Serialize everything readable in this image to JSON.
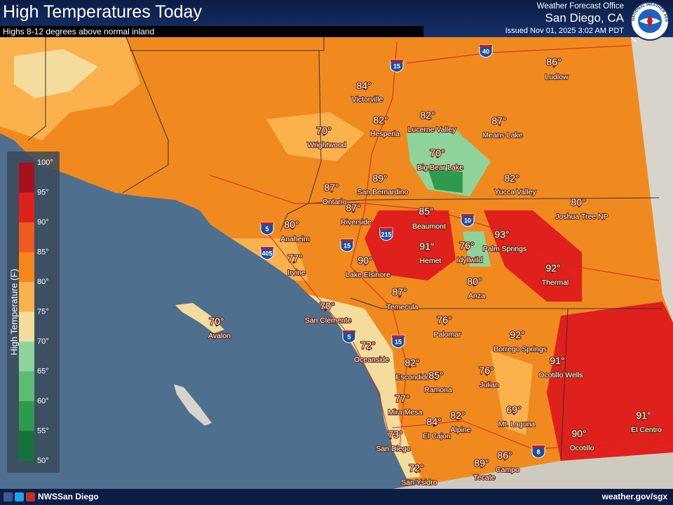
{
  "header": {
    "title": "High Temperatures Today",
    "subtitle": "Highs 8-12 degrees above normal inland",
    "office": "Weather Forecast Office",
    "location": "San Diego, CA",
    "issued": "Issued Nov 01, 2025 3:02 AM PDT",
    "seal": "NATIONAL WEATHER SERVICE"
  },
  "legend": {
    "title": "High Temperature (F)",
    "labels": [
      "100°",
      "95°",
      "90°",
      "85°",
      "80°",
      "75°",
      "70°",
      "65°",
      "60°",
      "55°",
      "50°"
    ],
    "colors": [
      "#a8101e",
      "#e0201c",
      "#ef5a1e",
      "#f7861a",
      "#fbb24c",
      "#f4dd9c",
      "#8ed49a",
      "#5cbc73",
      "#2e9a4e",
      "#147338"
    ]
  },
  "cities": [
    {
      "name": "Victorville",
      "temp": "84°"
    },
    {
      "name": "Hesperia",
      "temp": "82°"
    },
    {
      "name": "Lucerne Valley",
      "temp": "82°"
    },
    {
      "name": "Means Lake",
      "temp": "87°"
    },
    {
      "name": "Ludlow",
      "temp": "86°"
    },
    {
      "name": "Wrightwood",
      "temp": "70°"
    },
    {
      "name": "Big Bear Lake",
      "temp": "70°"
    },
    {
      "name": "San Bernardino",
      "temp": "89°"
    },
    {
      "name": "Yucca Valley",
      "temp": "82°"
    },
    {
      "name": "Joshua Tree NP",
      "temp": "80°"
    },
    {
      "name": "Ontario",
      "temp": "87°"
    },
    {
      "name": "Riverside",
      "temp": "87°"
    },
    {
      "name": "Beaumont",
      "temp": "85°"
    },
    {
      "name": "Anaheim",
      "temp": "80°"
    },
    {
      "name": "Palm Springs",
      "temp": "93°"
    },
    {
      "name": "Hemet",
      "temp": "91°"
    },
    {
      "name": "Idyllwild",
      "temp": "76°"
    },
    {
      "name": "Irvine",
      "temp": "77°"
    },
    {
      "name": "Lake Elsinore",
      "temp": "90°"
    },
    {
      "name": "Thermal",
      "temp": "92°"
    },
    {
      "name": "Anza",
      "temp": "80°"
    },
    {
      "name": "Temecula",
      "temp": "87°"
    },
    {
      "name": "Avalon",
      "temp": "70°"
    },
    {
      "name": "San Clemente",
      "temp": "70°"
    },
    {
      "name": "Palomar",
      "temp": "76°"
    },
    {
      "name": "Borrego Springs",
      "temp": "92°"
    },
    {
      "name": "Oceanside",
      "temp": "72°"
    },
    {
      "name": "Ocotillo Wells",
      "temp": "91°"
    },
    {
      "name": "Escondido",
      "temp": "82°"
    },
    {
      "name": "Ramona",
      "temp": "85°"
    },
    {
      "name": "Julian",
      "temp": "76°"
    },
    {
      "name": "Mira Mesa",
      "temp": "77°"
    },
    {
      "name": "Mt. Laguna",
      "temp": "69°"
    },
    {
      "name": "Alpine",
      "temp": "82°"
    },
    {
      "name": "El Cajon",
      "temp": "84°"
    },
    {
      "name": "El Centro",
      "temp": "91°"
    },
    {
      "name": "Ocotillo",
      "temp": "90°"
    },
    {
      "name": "San Diego",
      "temp": "73°"
    },
    {
      "name": "Campo",
      "temp": "86°"
    },
    {
      "name": "Tecate",
      "temp": "89°"
    },
    {
      "name": "San Ysidro",
      "temp": "72°"
    }
  ],
  "interstates": [
    "40",
    "15",
    "5",
    "405",
    "215",
    "15",
    "10",
    "5",
    "15",
    "8"
  ],
  "footer": {
    "social": "NWSSan Diego",
    "url": "weather.gov/sgx"
  }
}
